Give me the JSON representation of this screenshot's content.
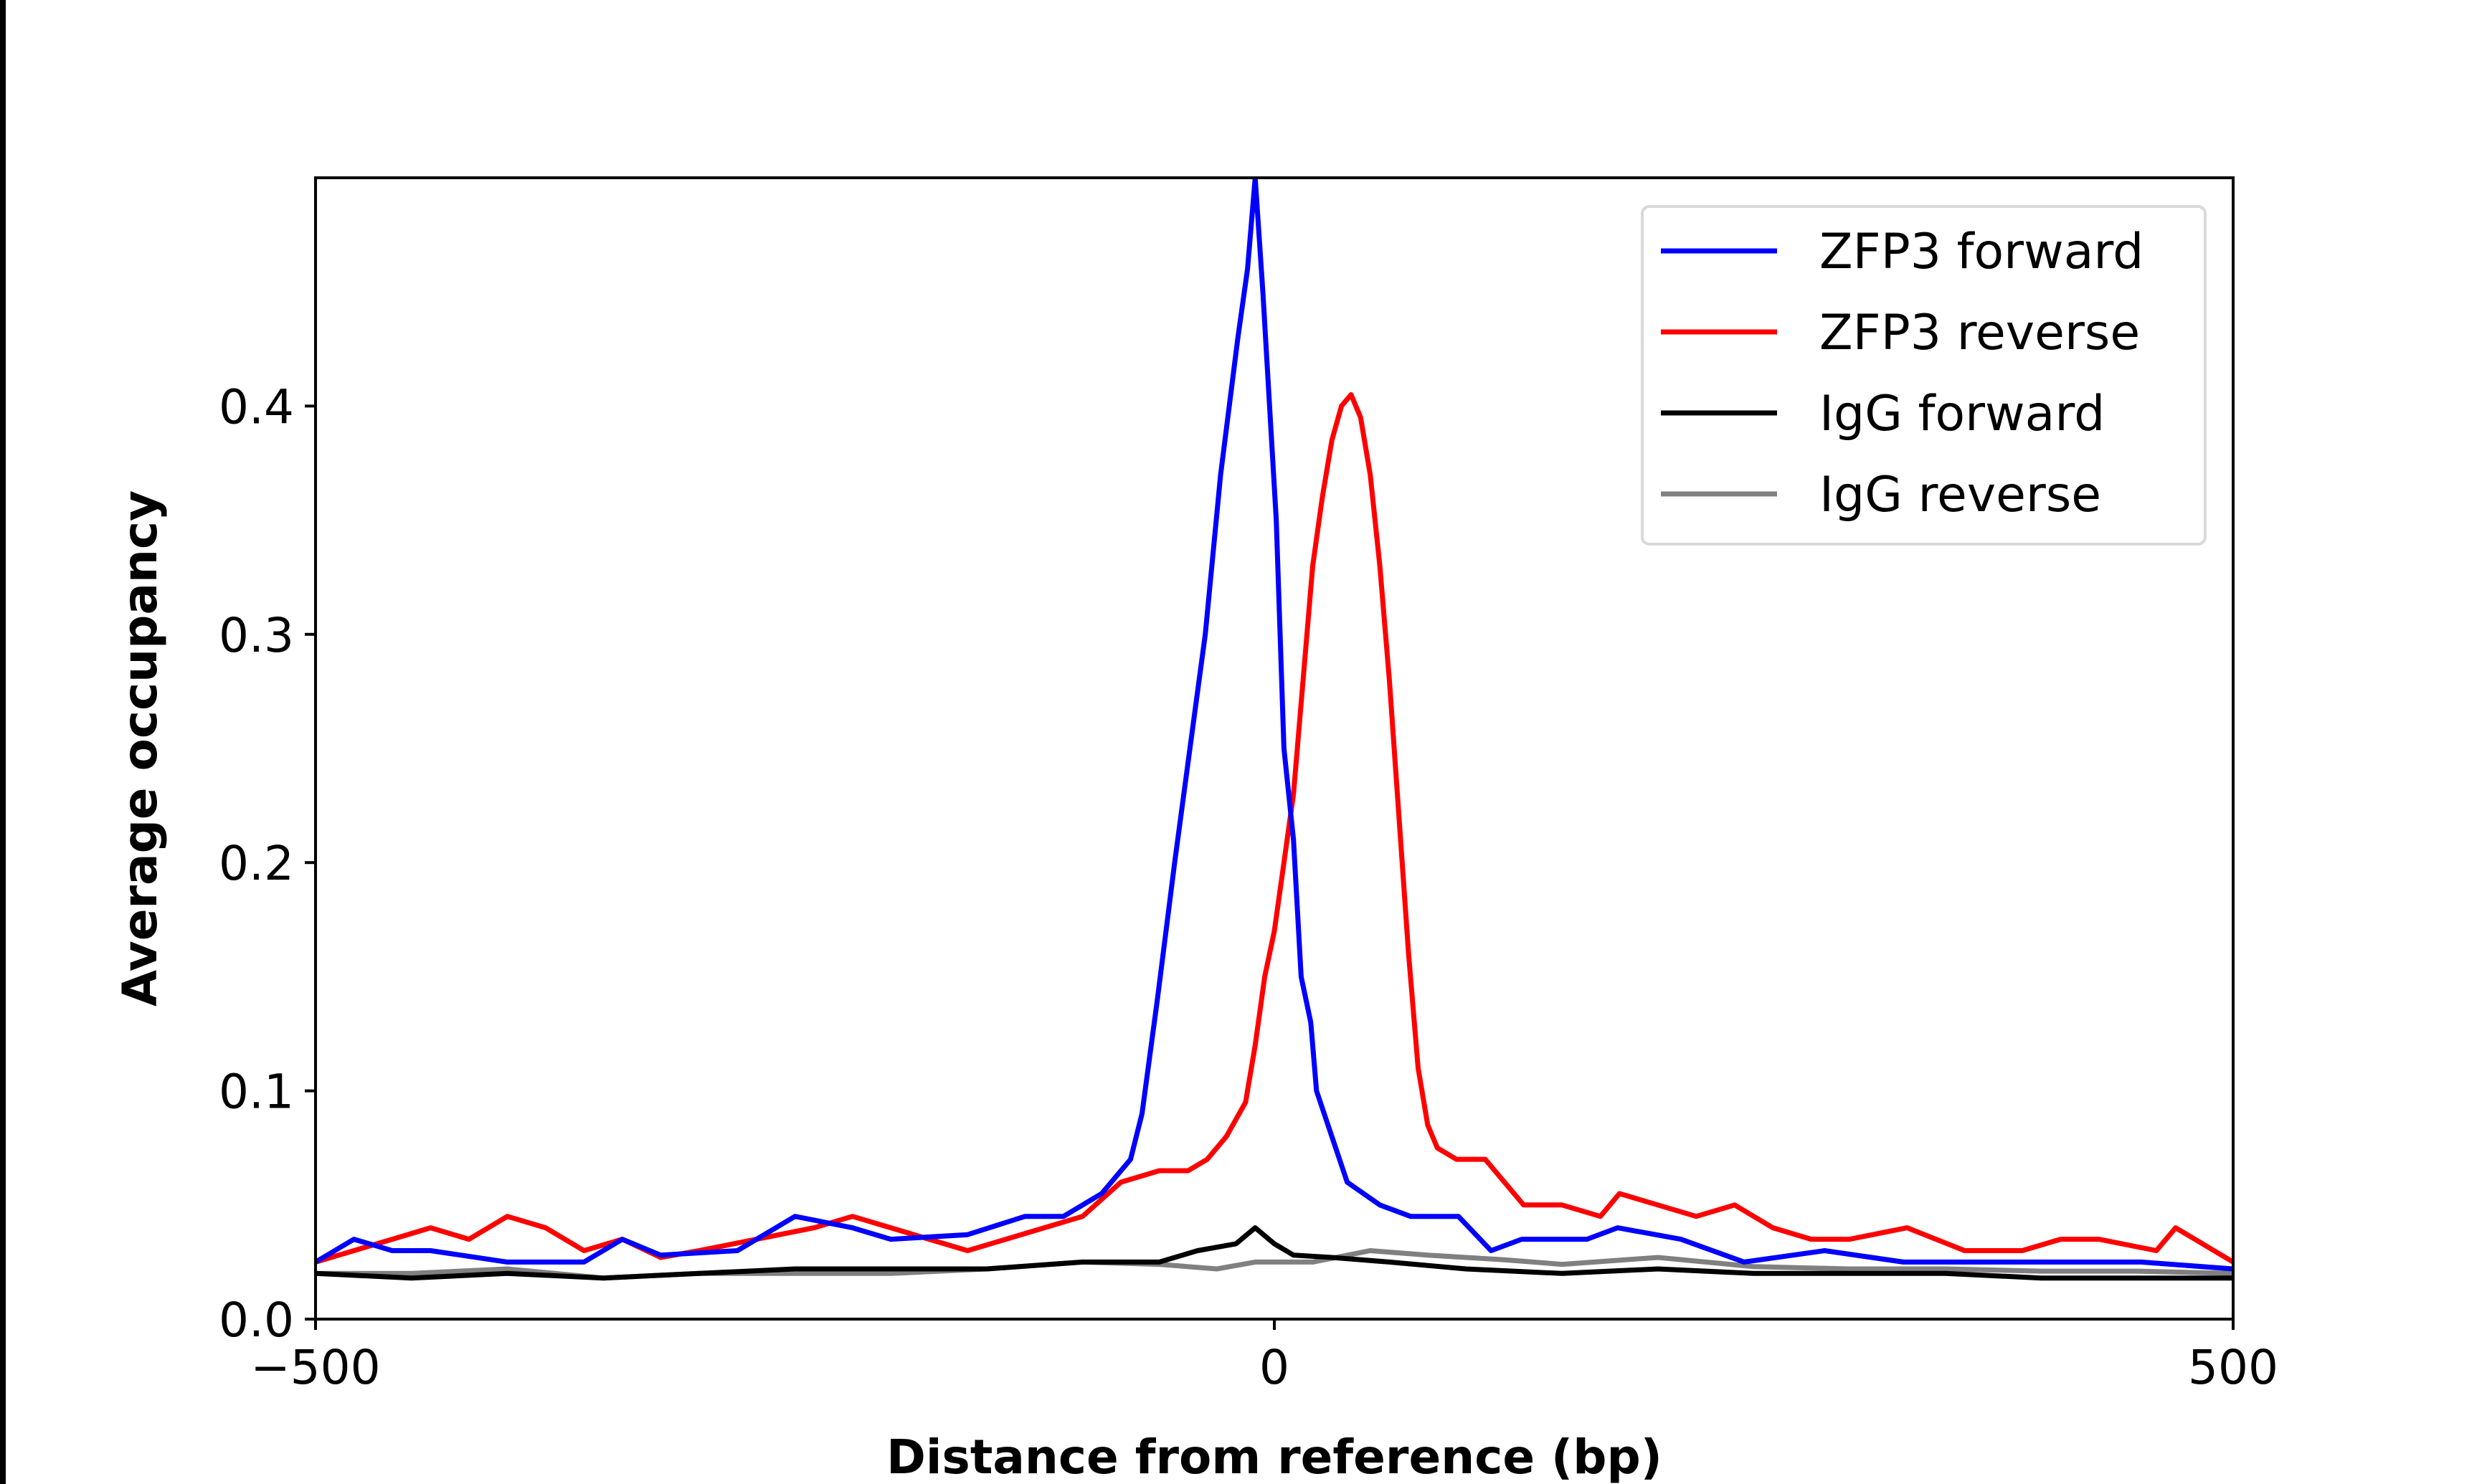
{
  "chart_data": {
    "type": "line",
    "title": "",
    "xlabel": "Distance from reference (bp)",
    "ylabel": "Average occupancy",
    "xlim": [
      -500,
      500
    ],
    "ylim": [
      0,
      0.5
    ],
    "xticks": [
      -500,
      0,
      500
    ],
    "xtick_labels": [
      "−500",
      "0",
      "500"
    ],
    "yticks": [
      0.0,
      0.1,
      0.2,
      0.3,
      0.4
    ],
    "ytick_labels": [
      "0.0",
      "0.1",
      "0.2",
      "0.3",
      "0.4"
    ],
    "grid": false,
    "legend_position": "top-right",
    "series": [
      {
        "name": "ZFP3 forward",
        "color": "#0000ff",
        "x": [
          -500,
          -480,
          -460,
          -440,
          -400,
          -360,
          -340,
          -320,
          -280,
          -250,
          -220,
          -200,
          -160,
          -130,
          -110,
          -90,
          -75,
          -69,
          -61,
          -52,
          -44,
          -36,
          -28,
          -19,
          -14,
          -10,
          -6,
          1,
          5,
          10,
          14,
          19,
          22,
          30,
          38,
          55,
          71,
          96,
          113,
          129,
          163,
          179,
          212,
          245,
          287,
          328,
          369,
          411,
          452,
          500
        ],
        "y": [
          0.025,
          0.035,
          0.03,
          0.03,
          0.025,
          0.025,
          0.035,
          0.028,
          0.03,
          0.045,
          0.04,
          0.035,
          0.037,
          0.045,
          0.045,
          0.055,
          0.07,
          0.09,
          0.14,
          0.2,
          0.25,
          0.3,
          0.37,
          0.43,
          0.46,
          0.5,
          0.45,
          0.35,
          0.25,
          0.21,
          0.15,
          0.13,
          0.1,
          0.08,
          0.06,
          0.05,
          0.045,
          0.045,
          0.03,
          0.035,
          0.035,
          0.04,
          0.035,
          0.025,
          0.03,
          0.025,
          0.025,
          0.025,
          0.025,
          0.022
        ]
      },
      {
        "name": "ZFP3 reverse",
        "color": "#ff0000",
        "x": [
          -500,
          -480,
          -460,
          -440,
          -420,
          -400,
          -380,
          -360,
          -340,
          -320,
          -300,
          -270,
          -240,
          -220,
          -200,
          -180,
          -160,
          -140,
          -120,
          -100,
          -80,
          -60,
          -45,
          -35,
          -25,
          -15,
          -10,
          -5,
          0,
          5,
          10,
          15,
          20,
          25,
          30,
          35,
          40,
          45,
          50,
          55,
          60,
          65,
          70,
          75,
          80,
          85,
          95,
          110,
          120,
          130,
          150,
          170,
          180,
          200,
          220,
          240,
          260,
          280,
          300,
          330,
          360,
          390,
          410,
          430,
          460,
          470,
          490,
          500
        ],
        "y": [
          0.025,
          0.03,
          0.035,
          0.04,
          0.035,
          0.045,
          0.04,
          0.03,
          0.035,
          0.027,
          0.03,
          0.035,
          0.04,
          0.045,
          0.04,
          0.035,
          0.03,
          0.035,
          0.04,
          0.045,
          0.06,
          0.065,
          0.065,
          0.07,
          0.08,
          0.095,
          0.12,
          0.15,
          0.17,
          0.2,
          0.23,
          0.28,
          0.33,
          0.36,
          0.385,
          0.4,
          0.405,
          0.395,
          0.37,
          0.33,
          0.28,
          0.22,
          0.16,
          0.11,
          0.085,
          0.075,
          0.07,
          0.07,
          0.06,
          0.05,
          0.05,
          0.045,
          0.055,
          0.05,
          0.045,
          0.05,
          0.04,
          0.035,
          0.035,
          0.04,
          0.03,
          0.03,
          0.035,
          0.035,
          0.03,
          0.04,
          0.03,
          0.025
        ]
      },
      {
        "name": "IgG forward",
        "color": "#000000",
        "x": [
          -500,
          -450,
          -400,
          -350,
          -300,
          -250,
          -200,
          -150,
          -100,
          -60,
          -40,
          -20,
          -10,
          0,
          10,
          30,
          60,
          100,
          150,
          200,
          250,
          300,
          350,
          400,
          450,
          500
        ],
        "y": [
          0.02,
          0.018,
          0.02,
          0.018,
          0.02,
          0.022,
          0.022,
          0.022,
          0.025,
          0.025,
          0.03,
          0.033,
          0.04,
          0.033,
          0.028,
          0.027,
          0.025,
          0.022,
          0.02,
          0.022,
          0.02,
          0.02,
          0.02,
          0.018,
          0.018,
          0.018
        ]
      },
      {
        "name": "IgG reverse",
        "color": "#808080",
        "x": [
          -500,
          -450,
          -400,
          -350,
          -300,
          -250,
          -200,
          -150,
          -100,
          -60,
          -30,
          -10,
          0,
          20,
          50,
          80,
          120,
          150,
          200,
          250,
          300,
          350,
          400,
          450,
          500
        ],
        "y": [
          0.02,
          0.02,
          0.022,
          0.018,
          0.02,
          0.02,
          0.02,
          0.022,
          0.025,
          0.024,
          0.022,
          0.025,
          0.025,
          0.025,
          0.03,
          0.028,
          0.026,
          0.024,
          0.027,
          0.023,
          0.022,
          0.022,
          0.021,
          0.021,
          0.02
        ]
      }
    ]
  }
}
